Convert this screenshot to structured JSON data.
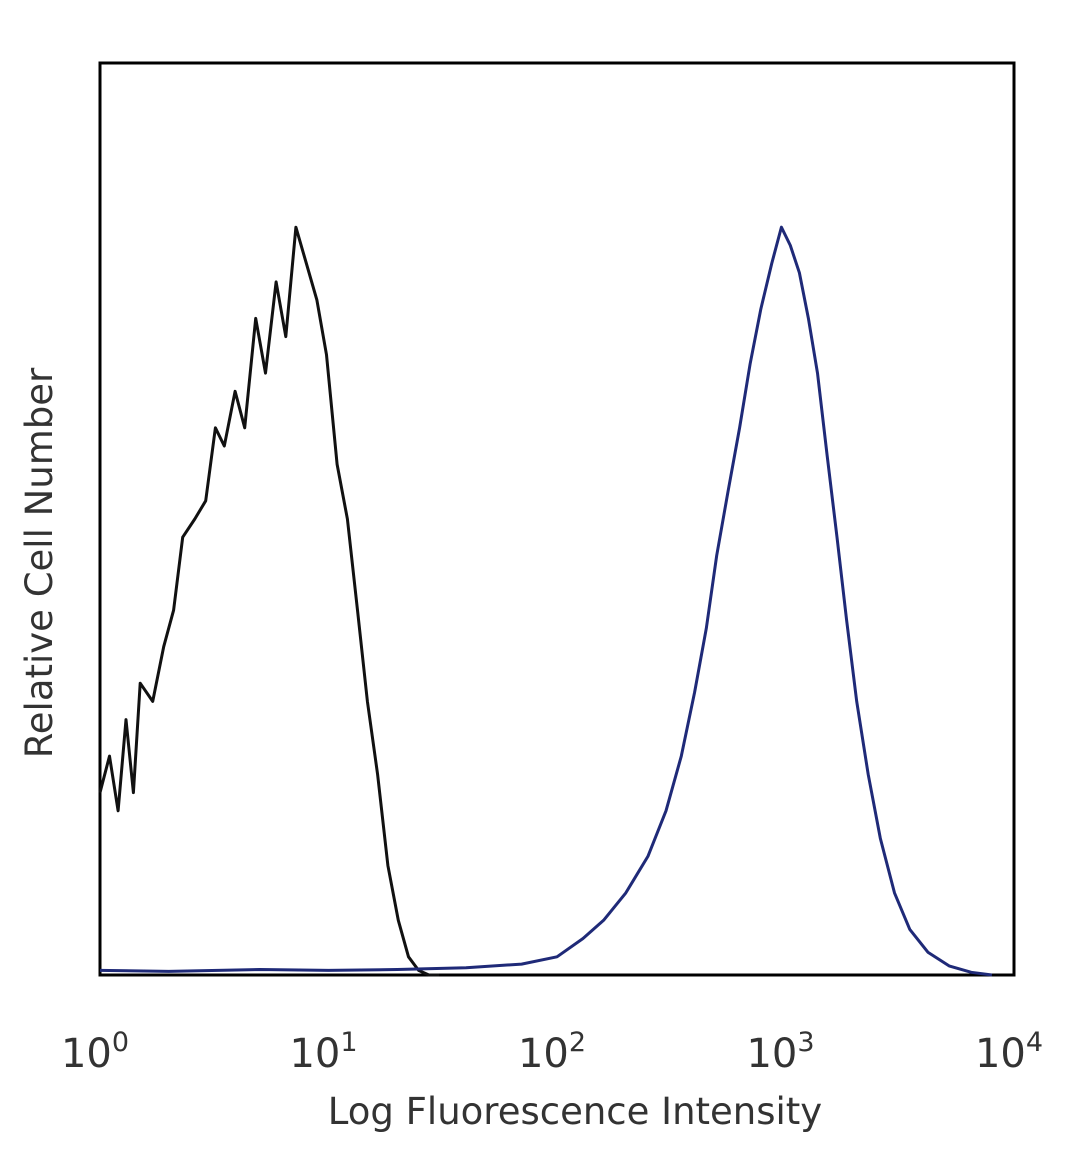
{
  "chart_data": {
    "type": "line",
    "xlabel": "Log Fluorescence Intensity",
    "ylabel": "Relative Cell Number",
    "x_scale": "log",
    "xlim": [
      1,
      10000
    ],
    "ylim": [
      0,
      1
    ],
    "grid": false,
    "x_ticks": [
      {
        "base": "10",
        "exp": "0",
        "value": 1
      },
      {
        "base": "10",
        "exp": "1",
        "value": 10
      },
      {
        "base": "10",
        "exp": "2",
        "value": 100
      },
      {
        "base": "10",
        "exp": "3",
        "value": 1000
      },
      {
        "base": "10",
        "exp": "4",
        "value": 10000
      }
    ],
    "colors": {
      "series_1": "#111111",
      "series_2": "#1f2a78",
      "frame": "#000000"
    },
    "series": [
      {
        "x": [
          1.0,
          1.1,
          1.2,
          1.3,
          1.4,
          1.5,
          1.7,
          1.9,
          2.1,
          2.3,
          2.6,
          2.9,
          3.2,
          3.5,
          3.9,
          4.3,
          4.8,
          5.3,
          5.9,
          6.5,
          7.2,
          8.0,
          8.9,
          9.8,
          10.9,
          12.1,
          13.4,
          14.8,
          16.4,
          18.2,
          20.2,
          22.4,
          24.8,
          27.5,
          30.5
        ],
        "y": [
          0.2,
          0.24,
          0.18,
          0.28,
          0.2,
          0.32,
          0.3,
          0.36,
          0.4,
          0.48,
          0.5,
          0.52,
          0.6,
          0.58,
          0.64,
          0.6,
          0.72,
          0.66,
          0.76,
          0.7,
          0.82,
          0.78,
          0.74,
          0.68,
          0.56,
          0.5,
          0.4,
          0.3,
          0.22,
          0.12,
          0.06,
          0.02,
          0.005,
          0.0,
          0.0
        ]
      },
      {
        "x": [
          1.0,
          2.0,
          5.0,
          10.0,
          20.0,
          40.0,
          70.0,
          100.0,
          130.0,
          160.0,
          200.0,
          250.0,
          300.0,
          350.0,
          400.0,
          450.0,
          500.0,
          560.0,
          630.0,
          700.0,
          780.0,
          870.0,
          960.0,
          1050.0,
          1150.0,
          1260.0,
          1380.0,
          1520.0,
          1680.0,
          1850.0,
          2050.0,
          2300.0,
          2600.0,
          3000.0,
          3500.0,
          4200.0,
          5200.0,
          6500.0,
          8000.0
        ],
        "y": [
          0.005,
          0.004,
          0.006,
          0.005,
          0.006,
          0.008,
          0.012,
          0.02,
          0.04,
          0.06,
          0.09,
          0.13,
          0.18,
          0.24,
          0.31,
          0.38,
          0.46,
          0.53,
          0.6,
          0.67,
          0.73,
          0.78,
          0.82,
          0.8,
          0.77,
          0.72,
          0.66,
          0.57,
          0.48,
          0.39,
          0.3,
          0.22,
          0.15,
          0.09,
          0.05,
          0.025,
          0.01,
          0.003,
          0.0
        ]
      }
    ]
  }
}
